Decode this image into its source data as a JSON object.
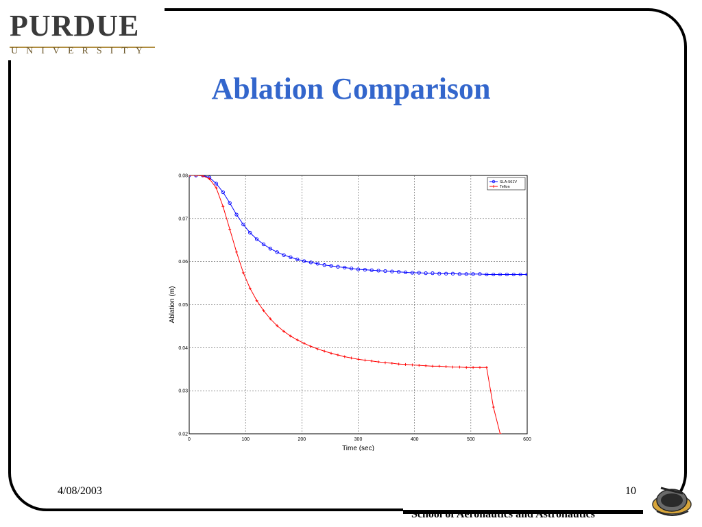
{
  "slide": {
    "title": "Ablation Comparison",
    "date": "4/08/2003",
    "page_number": "10",
    "footer": "School of Aeronautics and Astronautics",
    "logo": {
      "wordmark": "PURDUE",
      "subtitle": "UNIVERSITY"
    },
    "badge": {
      "icon": "purdue-aeronautics-badge-icon",
      "text": "Purdue University Aeronautics"
    },
    "colors": {
      "title": "#3366cc",
      "series1": "#0000ff",
      "series2": "#ff0000"
    }
  },
  "chart_data": {
    "type": "line",
    "xlabel": "Time (sec)",
    "ylabel": "Ablation (m)",
    "xlim": [
      0,
      600
    ],
    "ylim": [
      0.02,
      0.08
    ],
    "xticks": [
      0,
      100,
      200,
      300,
      400,
      500,
      600
    ],
    "yticks": [
      0.02,
      0.03,
      0.04,
      0.05,
      0.06,
      0.07,
      0.08
    ],
    "xtick_labels": [
      "0",
      "100",
      "200",
      "300",
      "400",
      "500",
      "600"
    ],
    "ytick_labels": [
      "0.02",
      "0.03",
      "0.04",
      "0.05",
      "0.06",
      "0.07",
      "0.08"
    ],
    "grid": true,
    "legend": "top-right",
    "series": [
      {
        "name": "SLA-561V",
        "color": "#0000ff",
        "marker": "circle",
        "x": [
          0,
          12,
          24,
          36,
          48,
          60,
          72,
          84,
          96,
          108,
          120,
          132,
          144,
          156,
          168,
          180,
          192,
          204,
          216,
          228,
          240,
          252,
          264,
          276,
          288,
          300,
          312,
          324,
          336,
          348,
          360,
          372,
          384,
          396,
          408,
          420,
          432,
          444,
          456,
          468,
          480,
          492,
          504,
          516,
          528,
          540,
          552,
          564,
          576,
          588,
          600
        ],
        "y": [
          0.08,
          0.08,
          0.08,
          0.0795,
          0.0781,
          0.0761,
          0.0736,
          0.0709,
          0.0686,
          0.0667,
          0.0652,
          0.064,
          0.063,
          0.0622,
          0.0615,
          0.061,
          0.0605,
          0.0601,
          0.0598,
          0.0595,
          0.0592,
          0.059,
          0.0588,
          0.0586,
          0.0584,
          0.0582,
          0.0581,
          0.058,
          0.0579,
          0.0578,
          0.0577,
          0.0576,
          0.0575,
          0.0574,
          0.0574,
          0.0573,
          0.0573,
          0.0572,
          0.0572,
          0.0572,
          0.0571,
          0.0571,
          0.0571,
          0.0571,
          0.057,
          0.057,
          0.057,
          0.057,
          0.057,
          0.057,
          0.057
        ]
      },
      {
        "name": "Teflon",
        "color": "#ff0000",
        "marker": "plus",
        "x": [
          0,
          12,
          24,
          36,
          48,
          60,
          72,
          84,
          96,
          108,
          120,
          132,
          144,
          156,
          168,
          180,
          192,
          204,
          216,
          228,
          240,
          252,
          264,
          276,
          288,
          300,
          312,
          324,
          336,
          348,
          360,
          372,
          384,
          396,
          408,
          420,
          432,
          444,
          456,
          468,
          480,
          492,
          504,
          516,
          528,
          540,
          552
        ],
        "y": [
          0.08,
          0.08,
          0.0799,
          0.0792,
          0.0771,
          0.0728,
          0.0675,
          0.0622,
          0.0574,
          0.0538,
          0.0509,
          0.0486,
          0.0467,
          0.0451,
          0.0438,
          0.0427,
          0.0418,
          0.041,
          0.0403,
          0.0397,
          0.0392,
          0.0387,
          0.0383,
          0.0379,
          0.0376,
          0.0373,
          0.0371,
          0.0369,
          0.0367,
          0.0365,
          0.0364,
          0.0362,
          0.0361,
          0.036,
          0.0359,
          0.0358,
          0.0357,
          0.0357,
          0.0356,
          0.0355,
          0.0355,
          0.0354,
          0.0354,
          0.0354,
          0.0354,
          0.0262,
          0.02
        ]
      }
    ]
  }
}
